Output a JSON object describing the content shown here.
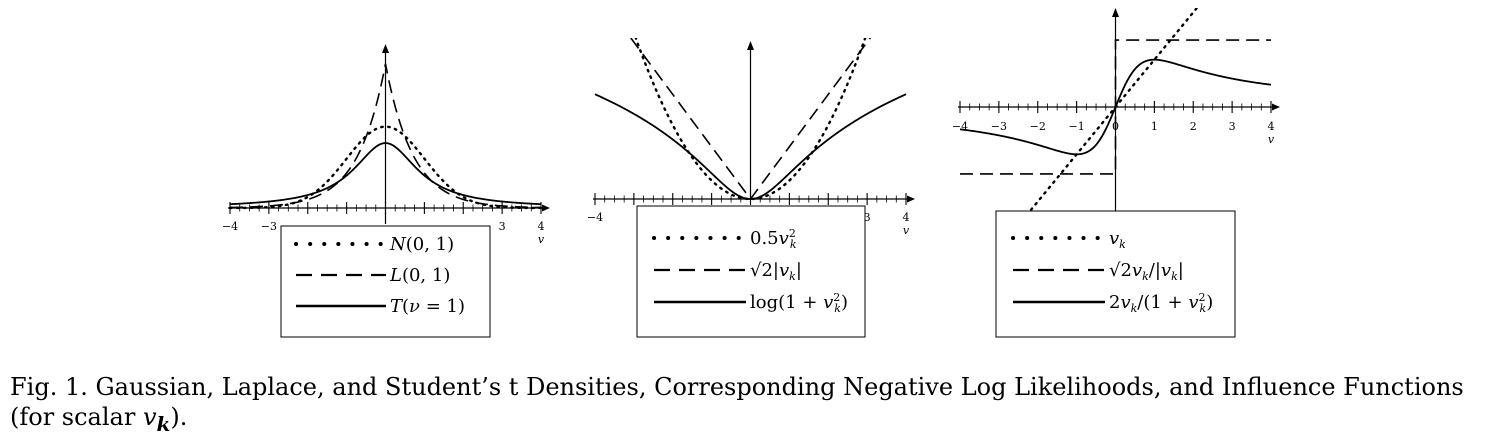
{
  "chart_data": [
    {
      "type": "line",
      "xlim": [
        -4,
        4
      ],
      "x_ticks": [
        -4,
        -3,
        -2,
        -1,
        0,
        1,
        2,
        3,
        4
      ],
      "x_tick_labels": [
        "−4",
        "−3",
        "",
        "",
        "",
        "",
        "",
        "3",
        "4"
      ],
      "xlabel": "v",
      "series": [
        {
          "name": "N(0,1)",
          "style": "dotted",
          "function": "exp(-v^2/2)/sqrt(2*pi)",
          "x": [
            -4,
            -3,
            -2,
            -1,
            0,
            1,
            2,
            3,
            4
          ],
          "values": [
            0.0001,
            0.0044,
            0.054,
            0.242,
            0.399,
            0.242,
            0.054,
            0.0044,
            0.0001
          ]
        },
        {
          "name": "L(0,1)",
          "style": "dashed",
          "function": "exp(-sqrt(2)|v|)/sqrt(2)",
          "x": [
            -4,
            -3,
            -2,
            -1,
            0,
            1,
            2,
            3,
            4
          ],
          "values": [
            0.0025,
            0.01,
            0.042,
            0.172,
            0.707,
            0.172,
            0.042,
            0.01,
            0.0025
          ]
        },
        {
          "name": "T(ν = 1)",
          "style": "solid",
          "function": "1/(pi*(1+v^2))",
          "x": [
            -4,
            -3,
            -2,
            -1,
            0,
            1,
            2,
            3,
            4
          ],
          "values": [
            0.019,
            0.032,
            0.064,
            0.159,
            0.318,
            0.159,
            0.064,
            0.032,
            0.019
          ]
        }
      ]
    },
    {
      "type": "line",
      "xlim": [
        -4,
        4
      ],
      "x_ticks": [
        -4,
        -3,
        -2,
        -1,
        0,
        1,
        2,
        3,
        4
      ],
      "x_tick_labels": [
        "−4",
        "",
        "",
        "",
        "",
        "",
        "",
        "3",
        "4"
      ],
      "xlabel": "v",
      "series": [
        {
          "name": "0.5v_k^2",
          "style": "dotted",
          "function": "0.5*v^2",
          "x": [
            -4,
            -3,
            -2,
            -1,
            0,
            1,
            2,
            3,
            4
          ],
          "values": [
            8,
            4.5,
            2,
            0.5,
            0,
            0.5,
            2,
            4.5,
            8
          ]
        },
        {
          "name": "√2|v_k|",
          "style": "dashed",
          "function": "sqrt(2)*|v|",
          "x": [
            -4,
            -3,
            -2,
            -1,
            0,
            1,
            2,
            3,
            4
          ],
          "values": [
            5.66,
            4.24,
            2.83,
            1.41,
            0,
            1.41,
            2.83,
            4.24,
            5.66
          ]
        },
        {
          "name": "log(1 + v_k^2)",
          "style": "solid",
          "function": "log(1+v^2)",
          "x": [
            -4,
            -3,
            -2,
            -1,
            0,
            1,
            2,
            3,
            4
          ],
          "values": [
            2.83,
            2.3,
            1.61,
            0.69,
            0,
            0.69,
            1.61,
            2.3,
            2.83
          ]
        }
      ]
    },
    {
      "type": "line",
      "xlim": [
        -4,
        4
      ],
      "x_ticks": [
        -4,
        -3,
        -2,
        -1,
        0,
        1,
        2,
        3,
        4
      ],
      "x_tick_labels": [
        "−4",
        "−3",
        "−2",
        "−1",
        "0",
        "1",
        "2",
        "3",
        "4"
      ],
      "xlabel": "v",
      "series": [
        {
          "name": "v_k",
          "style": "dotted",
          "function": "v",
          "x": [
            -4,
            -3,
            -2,
            -1,
            0,
            1,
            2,
            3,
            4
          ],
          "values": [
            -4,
            -3,
            -2,
            -1,
            0,
            1,
            2,
            3,
            4
          ]
        },
        {
          "name": "√2v_k/|v_k|",
          "style": "dashed",
          "function": "sqrt(2)*sign(v)",
          "x": [
            -4,
            -3,
            -2,
            -1,
            0,
            1,
            2,
            3,
            4
          ],
          "values": [
            -1.41,
            -1.41,
            -1.41,
            -1.41,
            0,
            1.41,
            1.41,
            1.41,
            1.41
          ]
        },
        {
          "name": "2v_k/(1 + v_k^2)",
          "style": "solid",
          "function": "2*v/(1+v^2)",
          "x": [
            -4,
            -3,
            -2,
            -1,
            0,
            1,
            2,
            3,
            4
          ],
          "values": [
            -0.47,
            -0.6,
            -0.8,
            -1,
            0,
            1,
            0.8,
            0.6,
            0.47
          ]
        }
      ]
    }
  ],
  "caption": {
    "label": "Fig. 1.",
    "text": "Gaussian, Laplace, and Student’s t Densities, Corresponding Negative Log Likelihoods, and Influence Functions (for scalar ",
    "math": "v",
    "math_sub": "k",
    "end": ")."
  }
}
